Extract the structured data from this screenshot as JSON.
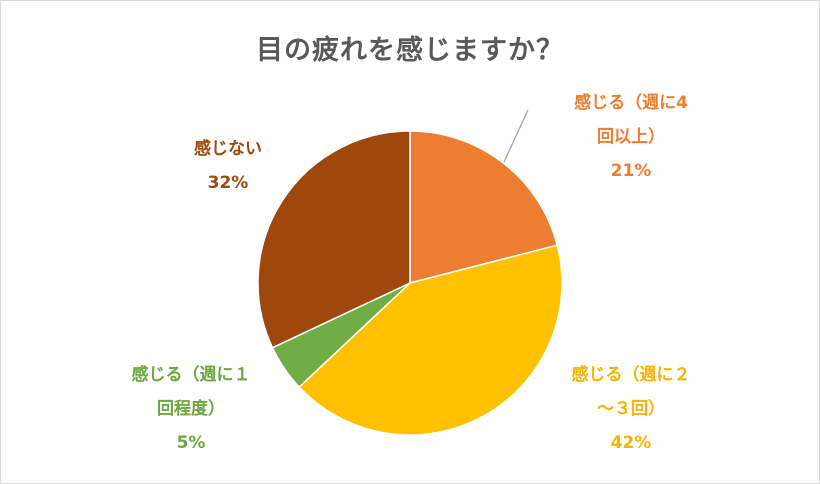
{
  "chart_data": {
    "type": "pie",
    "title": "目の疲れを感じますか？",
    "slices": [
      {
        "label_lines": [
          "感じる（週に4",
          "回以上）"
        ],
        "value_text": "21%",
        "value": 21,
        "color": "#ED7D31"
      },
      {
        "label_lines": [
          "感じる（週に２",
          "～３回）"
        ],
        "value_text": "42%",
        "value": 42,
        "color": "#FFC000"
      },
      {
        "label_lines": [
          "感じる（週に１",
          "回程度）"
        ],
        "value_text": "5%",
        "value": 5,
        "color": "#70AD47"
      },
      {
        "label_lines": [
          "感じない"
        ],
        "value_text": "32%",
        "value": 32,
        "color": "#9E480E"
      }
    ],
    "label_colors": [
      "#ED7D31",
      "#F4B400",
      "#6AA83F",
      "#9E480E"
    ],
    "leader_line_color": "#A6A6A6"
  }
}
